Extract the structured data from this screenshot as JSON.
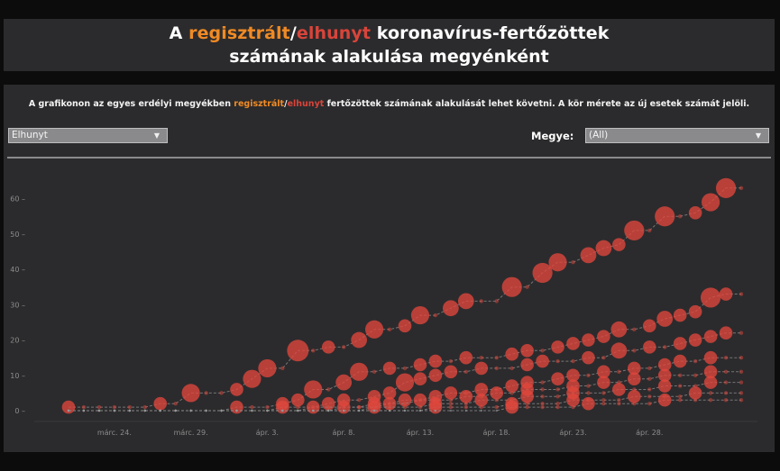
{
  "title": {
    "part_a": "A ",
    "part_registered": "regisztrált",
    "part_slash": "/",
    "part_deceased": "elhunyt",
    "part_rest": " koronavírus-fertőzöttek",
    "line2": "számának alakulása megyénként"
  },
  "description": {
    "before": "A grafikonon az egyes erdélyi megyékben ",
    "registered": "regisztrált",
    "slash": "/",
    "deceased": "elhunyt",
    "after": " fertőzöttek számának alakulását lehet követni. A kör mérete az új esetek számát jelöli."
  },
  "controls": {
    "measure_select": {
      "value": "Elhunyt"
    },
    "county_label": "Megye:",
    "county_select": {
      "value": "(All)"
    }
  },
  "colors": {
    "registered": "#f08a24",
    "deceased": "#d9443a",
    "bubble": "#e0473c",
    "line": "#8a8a8a",
    "panel": "#2b2b2d"
  },
  "chart_data": {
    "type": "scatter",
    "title": "",
    "xlabel": "",
    "ylabel": "",
    "x_start": "márc. 21.",
    "x_end": "ápr. 30.",
    "ylim": [
      0,
      65
    ],
    "y_ticks": [
      0,
      10,
      20,
      30,
      40,
      50,
      60
    ],
    "x_tick_labels": [
      "márc. 24.",
      "márc. 29.",
      "ápr. 3.",
      "ápr. 8.",
      "ápr. 13.",
      "ápr. 18.",
      "ápr. 23.",
      "ápr. 28."
    ],
    "x_tick_days": [
      3,
      8,
      13,
      18,
      23,
      28,
      33,
      38
    ],
    "note": "Bubble size = new cases that day; each line is one county.",
    "series": [
      {
        "values": [
          1,
          1,
          1,
          1,
          1,
          1,
          2,
          2,
          5,
          5,
          5,
          6,
          9,
          12,
          12,
          17,
          17,
          18,
          18,
          20,
          23,
          23,
          24,
          27,
          27,
          29,
          31,
          31,
          31,
          35,
          35,
          39,
          42,
          42,
          44,
          46,
          47,
          51,
          51,
          55,
          55,
          56,
          59,
          63,
          63
        ]
      },
      {
        "values": [
          0,
          0,
          0,
          0,
          0,
          0,
          0,
          0,
          0,
          0,
          0,
          1,
          1,
          1,
          2,
          3,
          6,
          6,
          8,
          11,
          11,
          12,
          12,
          13,
          14,
          14,
          15,
          15,
          15,
          16,
          17,
          17,
          18,
          19,
          20,
          21,
          23,
          23,
          24,
          26,
          27,
          28,
          32,
          33,
          33
        ]
      },
      {
        "values": [
          0,
          0,
          0,
          0,
          0,
          0,
          0,
          0,
          0,
          0,
          0,
          0,
          0,
          0,
          1,
          1,
          1,
          2,
          3,
          3,
          4,
          5,
          8,
          9,
          10,
          11,
          11,
          12,
          12,
          12,
          13,
          14,
          14,
          14,
          15,
          15,
          17,
          17,
          18,
          18,
          19,
          20,
          21,
          22,
          22
        ]
      },
      {
        "values": [
          0,
          0,
          0,
          0,
          0,
          0,
          0,
          0,
          0,
          0,
          0,
          0,
          0,
          0,
          0,
          0,
          1,
          1,
          1,
          1,
          2,
          2,
          3,
          3,
          4,
          5,
          5,
          6,
          6,
          7,
          8,
          8,
          9,
          10,
          10,
          11,
          11,
          12,
          12,
          13,
          14,
          14,
          15,
          15,
          15
        ]
      },
      {
        "values": [
          0,
          0,
          0,
          0,
          0,
          0,
          0,
          0,
          0,
          0,
          0,
          0,
          0,
          0,
          0,
          0,
          0,
          0,
          1,
          1,
          1,
          2,
          2,
          3,
          3,
          3,
          4,
          4,
          5,
          5,
          6,
          6,
          6,
          7,
          7,
          8,
          8,
          9,
          9,
          10,
          10,
          10,
          11,
          11,
          11
        ]
      },
      {
        "values": [
          0,
          0,
          0,
          0,
          0,
          0,
          0,
          0,
          0,
          0,
          0,
          0,
          0,
          0,
          0,
          0,
          0,
          0,
          0,
          0,
          1,
          1,
          1,
          1,
          2,
          2,
          2,
          3,
          3,
          3,
          4,
          4,
          4,
          5,
          5,
          5,
          6,
          6,
          6,
          7,
          7,
          7,
          8,
          8,
          8
        ]
      },
      {
        "values": [
          0,
          0,
          0,
          0,
          0,
          0,
          0,
          0,
          0,
          0,
          0,
          0,
          0,
          0,
          0,
          0,
          0,
          0,
          0,
          0,
          0,
          0,
          0,
          0,
          1,
          1,
          1,
          1,
          1,
          2,
          2,
          2,
          2,
          3,
          3,
          3,
          3,
          4,
          4,
          4,
          4,
          5,
          5,
          5,
          5
        ]
      },
      {
        "values": [
          0,
          0,
          0,
          0,
          0,
          0,
          0,
          0,
          0,
          0,
          0,
          0,
          0,
          0,
          0,
          0,
          0,
          0,
          0,
          0,
          0,
          0,
          0,
          0,
          0,
          0,
          0,
          0,
          0,
          1,
          1,
          1,
          1,
          1,
          2,
          2,
          2,
          2,
          2,
          3,
          3,
          3,
          3,
          3,
          3
        ]
      }
    ]
  }
}
